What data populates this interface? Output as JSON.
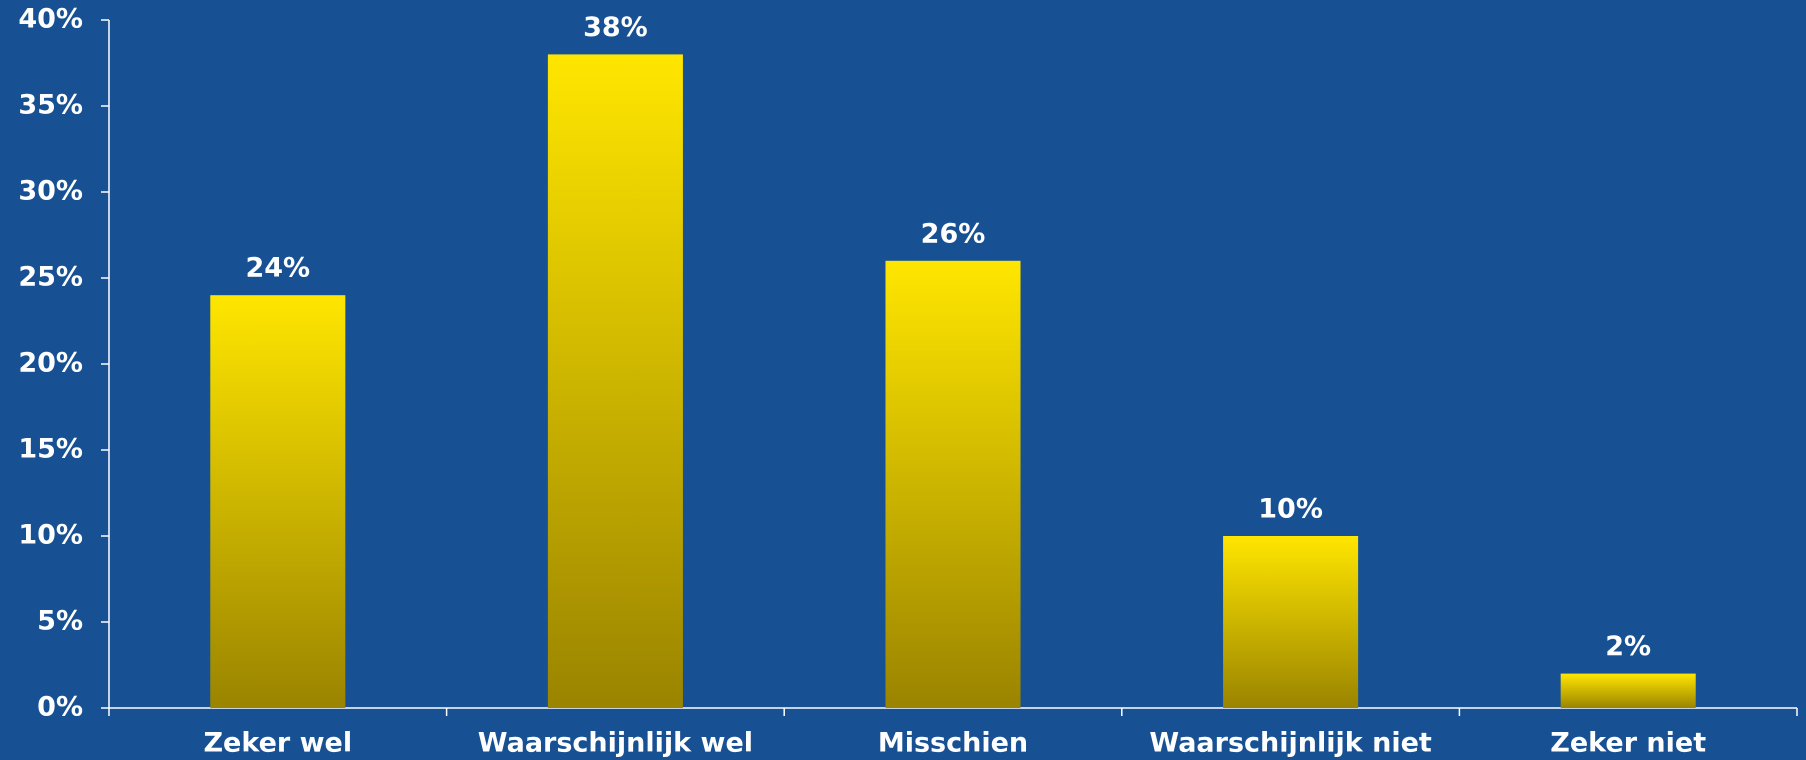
{
  "chart_data": {
    "type": "bar",
    "categories": [
      "Zeker wel",
      "Waarschijnlijk wel",
      "Misschien",
      "Waarschijnlijk niet",
      "Zeker niet"
    ],
    "values": [
      24,
      38,
      26,
      10,
      2
    ],
    "value_labels": [
      "24%",
      "38%",
      "26%",
      "10%",
      "2%"
    ],
    "color": "#ffe600",
    "ylim": [
      0,
      40
    ],
    "yticks": [
      {
        "value": 0,
        "label": "0%"
      },
      {
        "value": 5,
        "label": "5%"
      },
      {
        "value": 10,
        "label": "10%"
      },
      {
        "value": 15,
        "label": "15%"
      },
      {
        "value": 20,
        "label": "20%"
      },
      {
        "value": 25,
        "label": "25%"
      },
      {
        "value": 30,
        "label": "30%"
      },
      {
        "value": 35,
        "label": "35%"
      },
      {
        "value": 40,
        "label": "40%"
      }
    ],
    "grid": false
  }
}
